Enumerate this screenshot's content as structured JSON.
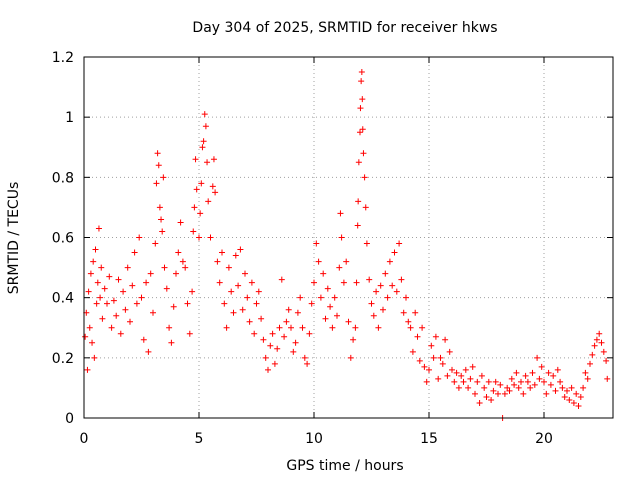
{
  "chart_data": {
    "type": "scatter",
    "title": "Day 304 of 2025, SRMTID for receiver hkws",
    "xlabel": "GPS time / hours",
    "ylabel": "SRMTID / TECUs",
    "xlim": [
      0,
      23.0
    ],
    "ylim": [
      0,
      1.2
    ],
    "xticks": [
      0,
      5,
      10,
      15,
      20
    ],
    "yticks": [
      0,
      0.2,
      0.4,
      0.6,
      0.8,
      1,
      1.2
    ],
    "xtick_labels": [
      "0",
      "5",
      "10",
      "15",
      "20"
    ],
    "ytick_labels": [
      "0",
      "0.2",
      "0.4",
      "0.6",
      "0.8",
      "1",
      "1.2"
    ],
    "grid": true,
    "marker": "plus",
    "color": "#ff0000",
    "series": [
      {
        "name": "SRMTID",
        "points": [
          [
            0.05,
            0.27
          ],
          [
            0.1,
            0.35
          ],
          [
            0.15,
            0.16
          ],
          [
            0.2,
            0.42
          ],
          [
            0.25,
            0.3
          ],
          [
            0.3,
            0.48
          ],
          [
            0.35,
            0.25
          ],
          [
            0.4,
            0.52
          ],
          [
            0.45,
            0.2
          ],
          [
            0.5,
            0.56
          ],
          [
            0.55,
            0.38
          ],
          [
            0.6,
            0.45
          ],
          [
            0.65,
            0.63
          ],
          [
            0.7,
            0.4
          ],
          [
            0.75,
            0.5
          ],
          [
            0.8,
            0.33
          ],
          [
            0.9,
            0.43
          ],
          [
            1.0,
            0.38
          ],
          [
            1.1,
            0.47
          ],
          [
            1.2,
            0.3
          ],
          [
            1.3,
            0.39
          ],
          [
            1.4,
            0.34
          ],
          [
            1.5,
            0.46
          ],
          [
            1.6,
            0.28
          ],
          [
            1.7,
            0.42
          ],
          [
            1.8,
            0.36
          ],
          [
            1.9,
            0.5
          ],
          [
            2.0,
            0.32
          ],
          [
            2.1,
            0.44
          ],
          [
            2.2,
            0.55
          ],
          [
            2.3,
            0.38
          ],
          [
            2.4,
            0.6
          ],
          [
            2.5,
            0.4
          ],
          [
            2.6,
            0.26
          ],
          [
            2.7,
            0.45
          ],
          [
            2.8,
            0.22
          ],
          [
            2.9,
            0.48
          ],
          [
            3.0,
            0.35
          ],
          [
            3.1,
            0.58
          ],
          [
            3.15,
            0.78
          ],
          [
            3.2,
            0.88
          ],
          [
            3.25,
            0.84
          ],
          [
            3.3,
            0.7
          ],
          [
            3.35,
            0.66
          ],
          [
            3.4,
            0.62
          ],
          [
            3.45,
            0.8
          ],
          [
            3.5,
            0.5
          ],
          [
            3.6,
            0.43
          ],
          [
            3.7,
            0.3
          ],
          [
            3.8,
            0.25
          ],
          [
            3.9,
            0.37
          ],
          [
            4.0,
            0.48
          ],
          [
            4.1,
            0.55
          ],
          [
            4.2,
            0.65
          ],
          [
            4.3,
            0.52
          ],
          [
            4.4,
            0.5
          ],
          [
            4.5,
            0.38
          ],
          [
            4.6,
            0.28
          ],
          [
            4.7,
            0.42
          ],
          [
            4.75,
            0.62
          ],
          [
            4.8,
            0.7
          ],
          [
            4.85,
            0.86
          ],
          [
            4.9,
            0.76
          ],
          [
            5.0,
            0.6
          ],
          [
            5.05,
            0.68
          ],
          [
            5.1,
            0.78
          ],
          [
            5.15,
            0.9
          ],
          [
            5.2,
            0.92
          ],
          [
            5.25,
            1.01
          ],
          [
            5.3,
            0.97
          ],
          [
            5.35,
            0.85
          ],
          [
            5.4,
            0.72
          ],
          [
            5.5,
            0.6
          ],
          [
            5.6,
            0.77
          ],
          [
            5.65,
            0.86
          ],
          [
            5.7,
            0.75
          ],
          [
            5.8,
            0.52
          ],
          [
            5.9,
            0.45
          ],
          [
            6.0,
            0.55
          ],
          [
            6.1,
            0.38
          ],
          [
            6.2,
            0.3
          ],
          [
            6.3,
            0.5
          ],
          [
            6.4,
            0.42
          ],
          [
            6.5,
            0.35
          ],
          [
            6.6,
            0.54
          ],
          [
            6.7,
            0.44
          ],
          [
            6.8,
            0.56
          ],
          [
            6.9,
            0.36
          ],
          [
            7.0,
            0.48
          ],
          [
            7.1,
            0.4
          ],
          [
            7.2,
            0.32
          ],
          [
            7.3,
            0.45
          ],
          [
            7.4,
            0.28
          ],
          [
            7.5,
            0.38
          ],
          [
            7.6,
            0.42
          ],
          [
            7.7,
            0.33
          ],
          [
            7.8,
            0.26
          ],
          [
            7.9,
            0.2
          ],
          [
            8.0,
            0.16
          ],
          [
            8.1,
            0.24
          ],
          [
            8.2,
            0.28
          ],
          [
            8.3,
            0.18
          ],
          [
            8.4,
            0.23
          ],
          [
            8.5,
            0.3
          ],
          [
            8.6,
            0.46
          ],
          [
            8.7,
            0.27
          ],
          [
            8.8,
            0.32
          ],
          [
            8.9,
            0.36
          ],
          [
            9.0,
            0.3
          ],
          [
            9.1,
            0.22
          ],
          [
            9.2,
            0.25
          ],
          [
            9.3,
            0.35
          ],
          [
            9.4,
            0.4
          ],
          [
            9.5,
            0.3
          ],
          [
            9.6,
            0.2
          ],
          [
            9.7,
            0.18
          ],
          [
            9.8,
            0.28
          ],
          [
            9.9,
            0.38
          ],
          [
            10.0,
            0.45
          ],
          [
            10.1,
            0.58
          ],
          [
            10.2,
            0.52
          ],
          [
            10.3,
            0.4
          ],
          [
            10.4,
            0.48
          ],
          [
            10.5,
            0.33
          ],
          [
            10.6,
            0.43
          ],
          [
            10.7,
            0.37
          ],
          [
            10.8,
            0.3
          ],
          [
            10.9,
            0.4
          ],
          [
            11.0,
            0.34
          ],
          [
            11.1,
            0.5
          ],
          [
            11.15,
            0.68
          ],
          [
            11.2,
            0.6
          ],
          [
            11.3,
            0.45
          ],
          [
            11.4,
            0.52
          ],
          [
            11.5,
            0.32
          ],
          [
            11.6,
            0.2
          ],
          [
            11.7,
            0.26
          ],
          [
            11.8,
            0.3
          ],
          [
            11.85,
            0.45
          ],
          [
            11.9,
            0.64
          ],
          [
            11.92,
            0.72
          ],
          [
            11.95,
            0.85
          ],
          [
            12.0,
            0.95
          ],
          [
            12.02,
            1.03
          ],
          [
            12.05,
            1.12
          ],
          [
            12.08,
            1.15
          ],
          [
            12.1,
            1.06
          ],
          [
            12.12,
            0.96
          ],
          [
            12.15,
            0.88
          ],
          [
            12.2,
            0.8
          ],
          [
            12.25,
            0.7
          ],
          [
            12.3,
            0.58
          ],
          [
            12.4,
            0.46
          ],
          [
            12.5,
            0.38
          ],
          [
            12.6,
            0.34
          ],
          [
            12.7,
            0.42
          ],
          [
            12.8,
            0.3
          ],
          [
            12.9,
            0.44
          ],
          [
            13.0,
            0.36
          ],
          [
            13.1,
            0.48
          ],
          [
            13.2,
            0.4
          ],
          [
            13.3,
            0.52
          ],
          [
            13.4,
            0.44
          ],
          [
            13.5,
            0.55
          ],
          [
            13.6,
            0.42
          ],
          [
            13.7,
            0.58
          ],
          [
            13.8,
            0.46
          ],
          [
            13.9,
            0.35
          ],
          [
            14.0,
            0.4
          ],
          [
            14.1,
            0.32
          ],
          [
            14.2,
            0.3
          ],
          [
            14.3,
            0.22
          ],
          [
            14.4,
            0.35
          ],
          [
            14.5,
            0.27
          ],
          [
            14.6,
            0.19
          ],
          [
            14.7,
            0.3
          ],
          [
            14.8,
            0.17
          ],
          [
            14.9,
            0.12
          ],
          [
            15.0,
            0.16
          ],
          [
            15.1,
            0.24
          ],
          [
            15.2,
            0.2
          ],
          [
            15.3,
            0.27
          ],
          [
            15.4,
            0.13
          ],
          [
            15.5,
            0.2
          ],
          [
            15.6,
            0.18
          ],
          [
            15.7,
            0.26
          ],
          [
            15.8,
            0.14
          ],
          [
            15.9,
            0.22
          ],
          [
            16.0,
            0.16
          ],
          [
            16.1,
            0.12
          ],
          [
            16.2,
            0.15
          ],
          [
            16.3,
            0.1
          ],
          [
            16.4,
            0.14
          ],
          [
            16.5,
            0.12
          ],
          [
            16.6,
            0.16
          ],
          [
            16.7,
            0.1
          ],
          [
            16.8,
            0.13
          ],
          [
            16.9,
            0.17
          ],
          [
            17.0,
            0.08
          ],
          [
            17.1,
            0.12
          ],
          [
            17.2,
            0.05
          ],
          [
            17.3,
            0.14
          ],
          [
            17.4,
            0.1
          ],
          [
            17.5,
            0.07
          ],
          [
            17.6,
            0.12
          ],
          [
            17.7,
            0.06
          ],
          [
            17.8,
            0.09
          ],
          [
            17.9,
            0.12
          ],
          [
            18.0,
            0.08
          ],
          [
            18.1,
            0.11
          ],
          [
            18.2,
            0.0
          ],
          [
            18.3,
            0.08
          ],
          [
            18.4,
            0.1
          ],
          [
            18.5,
            0.09
          ],
          [
            18.6,
            0.13
          ],
          [
            18.7,
            0.11
          ],
          [
            18.8,
            0.15
          ],
          [
            18.9,
            0.1
          ],
          [
            19.0,
            0.12
          ],
          [
            19.1,
            0.08
          ],
          [
            19.2,
            0.14
          ],
          [
            19.3,
            0.12
          ],
          [
            19.4,
            0.1
          ],
          [
            19.5,
            0.15
          ],
          [
            19.6,
            0.11
          ],
          [
            19.7,
            0.2
          ],
          [
            19.8,
            0.13
          ],
          [
            19.9,
            0.17
          ],
          [
            20.0,
            0.12
          ],
          [
            20.1,
            0.08
          ],
          [
            20.2,
            0.15
          ],
          [
            20.3,
            0.11
          ],
          [
            20.4,
            0.14
          ],
          [
            20.5,
            0.09
          ],
          [
            20.6,
            0.16
          ],
          [
            20.7,
            0.12
          ],
          [
            20.8,
            0.1
          ],
          [
            20.9,
            0.07
          ],
          [
            21.0,
            0.09
          ],
          [
            21.1,
            0.06
          ],
          [
            21.2,
            0.1
          ],
          [
            21.3,
            0.05
          ],
          [
            21.4,
            0.08
          ],
          [
            21.5,
            0.04
          ],
          [
            21.6,
            0.07
          ],
          [
            21.7,
            0.1
          ],
          [
            21.8,
            0.15
          ],
          [
            21.9,
            0.13
          ],
          [
            22.0,
            0.18
          ],
          [
            22.1,
            0.21
          ],
          [
            22.2,
            0.24
          ],
          [
            22.3,
            0.26
          ],
          [
            22.4,
            0.28
          ],
          [
            22.5,
            0.25
          ],
          [
            22.6,
            0.22
          ],
          [
            22.7,
            0.19
          ],
          [
            22.75,
            0.13
          ]
        ]
      }
    ]
  }
}
